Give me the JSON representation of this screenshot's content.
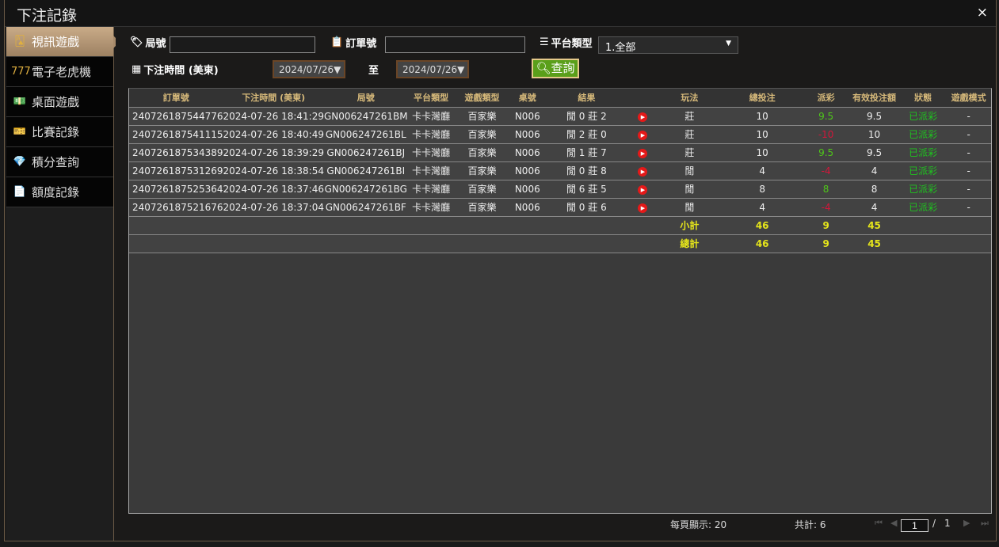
{
  "window": {
    "title": "下注記錄",
    "close": "×"
  },
  "sidebar": {
    "items": [
      {
        "label": "視訊遊戲",
        "icon": "cards-icon",
        "active": true
      },
      {
        "label": "電子老虎機",
        "icon": "777-slot-icon"
      },
      {
        "label": "桌面遊戲",
        "icon": "chips-icon"
      },
      {
        "label": "比賽記錄",
        "icon": "ticket-icon"
      },
      {
        "label": "積分查詢",
        "icon": "diamond-icon"
      },
      {
        "label": "額度記錄",
        "icon": "document-icon"
      }
    ]
  },
  "filters": {
    "round_label": "局號",
    "round_value": "",
    "order_label": "訂單號",
    "order_value": "",
    "platform_label": "平台類型",
    "platform_value": "1.全部",
    "time_label": "下注時間 (美東)",
    "date_from": "2024/07/26",
    "to_label": "至",
    "date_to": "2024/07/26",
    "query_label": "查詢"
  },
  "table": {
    "headers": [
      "訂單號",
      "下注時間 (美東)",
      "局號",
      "平台類型",
      "遊戲類型",
      "桌號",
      "結果",
      "",
      "玩法",
      "總投注",
      "派彩",
      "有效投注額",
      "狀態",
      "遊戲模式"
    ],
    "rows": [
      {
        "order": "240726187544776",
        "time": "2024-07-26 18:41:29",
        "round": "GN006247261BM",
        "platform": "卡卡灣廳",
        "game": "百家樂",
        "table": "N006",
        "result": "閒 0 莊 2",
        "play": "莊",
        "bet": "10",
        "payout": "9.5",
        "payout_color": "#4fc51a",
        "valid": "9.5",
        "status": "已派彩",
        "mode": "-"
      },
      {
        "order": "240726187541115",
        "time": "2024-07-26 18:40:49",
        "round": "GN006247261BL",
        "platform": "卡卡灣廳",
        "game": "百家樂",
        "table": "N006",
        "result": "閒 2 莊 0",
        "play": "莊",
        "bet": "10",
        "payout": "-10",
        "payout_color": "#d3163a",
        "valid": "10",
        "status": "已派彩",
        "mode": "-"
      },
      {
        "order": "240726187534389",
        "time": "2024-07-26 18:39:29",
        "round": "GN006247261BJ",
        "platform": "卡卡灣廳",
        "game": "百家樂",
        "table": "N006",
        "result": "閒 1 莊 7",
        "play": "莊",
        "bet": "10",
        "payout": "9.5",
        "payout_color": "#4fc51a",
        "valid": "9.5",
        "status": "已派彩",
        "mode": "-"
      },
      {
        "order": "240726187531269",
        "time": "2024-07-26 18:38:54",
        "round": "GN006247261BI",
        "platform": "卡卡灣廳",
        "game": "百家樂",
        "table": "N006",
        "result": "閒 0 莊 8",
        "play": "閒",
        "bet": "4",
        "payout": "-4",
        "payout_color": "#d3163a",
        "valid": "4",
        "status": "已派彩",
        "mode": "-"
      },
      {
        "order": "240726187525364",
        "time": "2024-07-26 18:37:46",
        "round": "GN006247261BG",
        "platform": "卡卡灣廳",
        "game": "百家樂",
        "table": "N006",
        "result": "閒 6 莊 5",
        "play": "閒",
        "bet": "8",
        "payout": "8",
        "payout_color": "#4fc51a",
        "valid": "8",
        "status": "已派彩",
        "mode": "-"
      },
      {
        "order": "240726187521676",
        "time": "2024-07-26 18:37:04",
        "round": "GN006247261BF",
        "platform": "卡卡灣廳",
        "game": "百家樂",
        "table": "N006",
        "result": "閒 0 莊 6",
        "play": "閒",
        "bet": "4",
        "payout": "-4",
        "payout_color": "#d3163a",
        "valid": "4",
        "status": "已派彩",
        "mode": "-"
      }
    ],
    "subtotal": {
      "label": "小計",
      "bet": "46",
      "payout": "9",
      "valid": "45"
    },
    "total": {
      "label": "總計",
      "bet": "46",
      "payout": "9",
      "valid": "45"
    }
  },
  "footer": {
    "per_page": "每頁顯示: 20",
    "total": "共計: 6",
    "page": "1",
    "page_sep": "/",
    "page_total": "1"
  }
}
